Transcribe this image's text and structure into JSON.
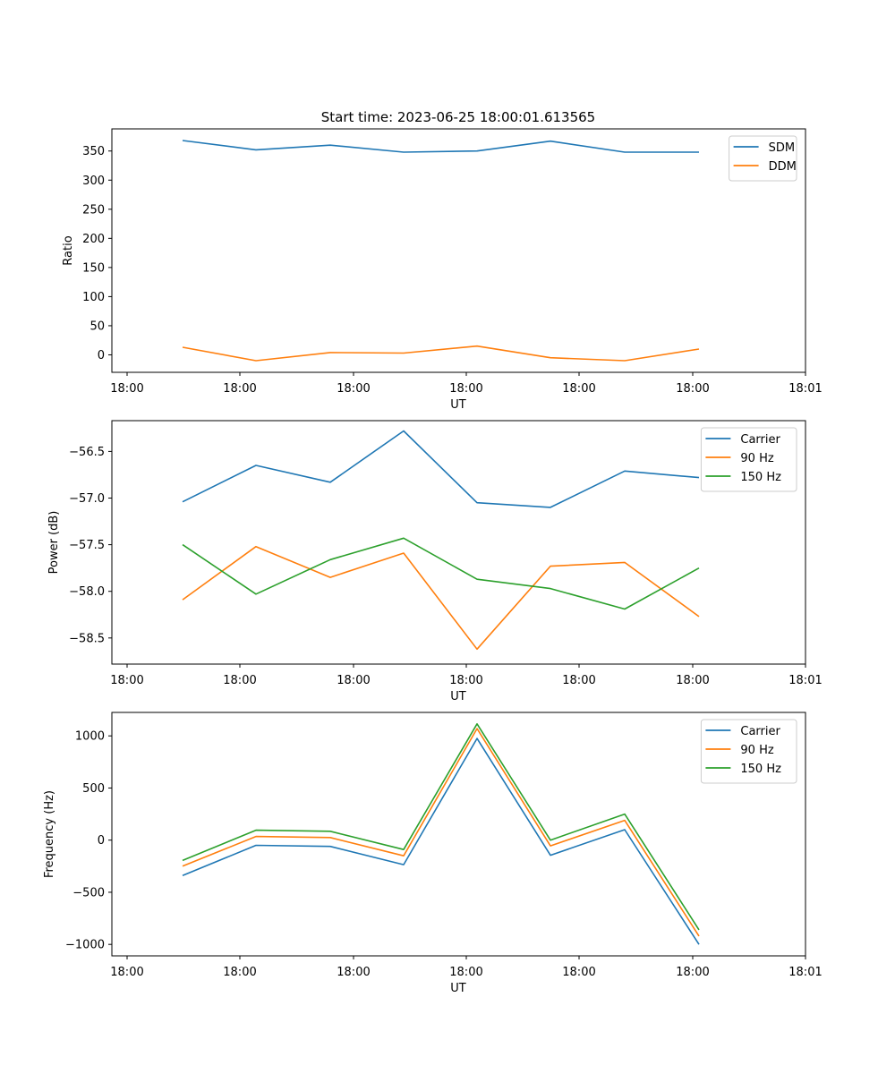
{
  "title": "Start time: 2023-06-25 18:00:01.613565",
  "chart_data": [
    {
      "type": "line",
      "ylabel": "Ratio",
      "xlabel": "UT",
      "x_tick_labels": [
        "18:00",
        "18:00",
        "18:00",
        "18:00",
        "18:00",
        "18:00",
        "18:00",
        "18:01"
      ],
      "ylim": [
        -30,
        388
      ],
      "y_ticks": [
        0,
        50,
        100,
        150,
        200,
        250,
        300,
        350
      ],
      "legend_position": "top-right",
      "grid": false,
      "series": [
        {
          "name": "SDM",
          "color": "#1f77b4",
          "values": [
            368,
            352,
            360,
            348,
            350,
            367,
            348,
            348
          ]
        },
        {
          "name": "DDM",
          "color": "#ff7f0e",
          "values": [
            13,
            -10,
            4,
            3,
            15,
            -5,
            -10,
            10
          ]
        }
      ]
    },
    {
      "type": "line",
      "ylabel": "Power (dB)",
      "xlabel": "UT",
      "x_tick_labels": [
        "18:00",
        "18:00",
        "18:00",
        "18:00",
        "18:00",
        "18:00",
        "18:00",
        "18:01"
      ],
      "ylim": [
        -58.78,
        -56.17
      ],
      "y_ticks": [
        -58.5,
        -58.0,
        -57.5,
        -57.0,
        -56.5
      ],
      "y_tick_labels": [
        "−58.5",
        "−58.0",
        "−57.5",
        "−57.0",
        "−56.5"
      ],
      "legend_position": "top-right",
      "grid": false,
      "series": [
        {
          "name": "Carrier",
          "color": "#1f77b4",
          "values": [
            -57.04,
            -56.65,
            -56.83,
            -56.28,
            -57.05,
            -57.1,
            -56.71,
            -56.78
          ]
        },
        {
          "name": "90 Hz",
          "color": "#ff7f0e",
          "values": [
            -58.09,
            -57.52,
            -57.85,
            -57.59,
            -58.62,
            -57.73,
            -57.69,
            -58.27
          ]
        },
        {
          "name": "150 Hz",
          "color": "#2ca02c",
          "values": [
            -57.5,
            -58.03,
            -57.66,
            -57.43,
            -57.87,
            -57.97,
            -58.19,
            -57.75
          ]
        }
      ]
    },
    {
      "type": "line",
      "ylabel": "Frequency (Hz)",
      "xlabel": "UT",
      "x_tick_labels": [
        "18:00",
        "18:00",
        "18:00",
        "18:00",
        "18:00",
        "18:00",
        "18:00",
        "18:01"
      ],
      "ylim": [
        -1110,
        1225
      ],
      "y_ticks": [
        -1000,
        -500,
        0,
        500,
        1000
      ],
      "y_tick_labels": [
        "−1000",
        "−500",
        "0",
        "500",
        "1000"
      ],
      "legend_position": "top-right",
      "grid": false,
      "series": [
        {
          "name": "Carrier",
          "color": "#1f77b4",
          "values": [
            -340,
            -50,
            -60,
            -235,
            975,
            -145,
            100,
            -1000
          ]
        },
        {
          "name": "90 Hz",
          "color": "#ff7f0e",
          "values": [
            -250,
            35,
            25,
            -150,
            1070,
            -55,
            190,
            -920
          ]
        },
        {
          "name": "150 Hz",
          "color": "#2ca02c",
          "values": [
            -195,
            95,
            85,
            -90,
            1115,
            0,
            250,
            -860
          ]
        }
      ]
    }
  ]
}
